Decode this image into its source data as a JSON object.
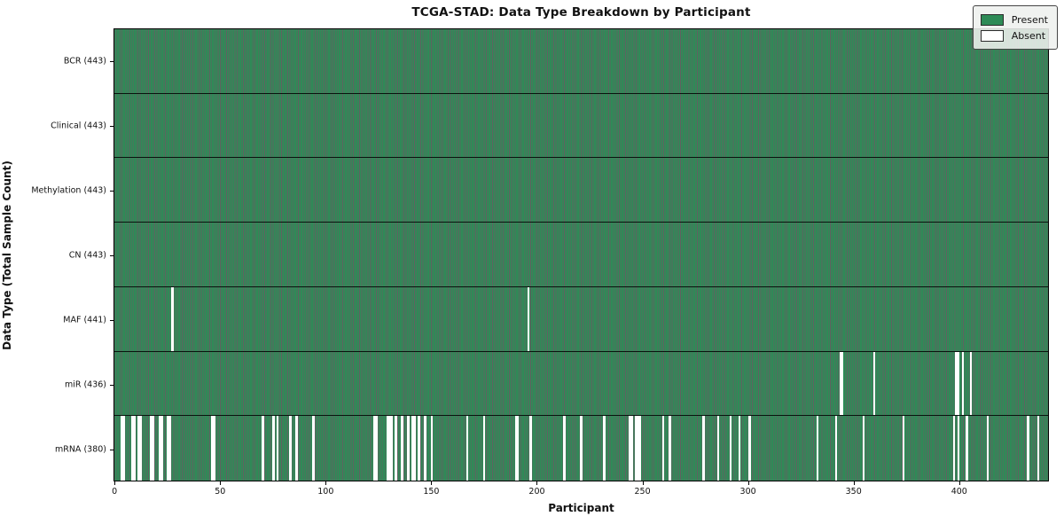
{
  "chart_data": {
    "type": "heatmap",
    "title": "TCGA-STAD: Data Type Breakdown by Participant",
    "xlabel": "Participant",
    "ylabel": "Data Type (Total Sample Count)",
    "n_participants": 443,
    "x_ticks": [
      0,
      50,
      100,
      150,
      200,
      250,
      300,
      350,
      400
    ],
    "legend_position": "upper right",
    "grid": false,
    "colors": {
      "present": "#2E8B57",
      "absent": "#FFFFFF",
      "edge": "#0D2B1B"
    },
    "legend": [
      {
        "label": "Present",
        "color": "#2E8B57"
      },
      {
        "label": "Absent",
        "color": "#FFFFFF"
      }
    ],
    "rows": [
      {
        "name": "BCR",
        "label": "BCR (443)",
        "total": 443,
        "absent": []
      },
      {
        "name": "Clinical",
        "label": "Clinical (443)",
        "total": 443,
        "absent": []
      },
      {
        "name": "Methylation",
        "label": "Methylation (443)",
        "total": 443,
        "absent": []
      },
      {
        "name": "CN",
        "label": "CN (443)",
        "total": 443,
        "absent": []
      },
      {
        "name": "MAF",
        "label": "MAF (441)",
        "total": 441,
        "absent": [
          27,
          196
        ]
      },
      {
        "name": "miR",
        "label": "miR (436)",
        "total": 436,
        "absent": [
          344,
          345,
          360,
          399,
          400,
          402,
          406
        ]
      },
      {
        "name": "mRNA",
        "label": "mRNA (380)",
        "total": 380,
        "absent": [
          3,
          4,
          8,
          9,
          11,
          12,
          17,
          18,
          21,
          22,
          25,
          26,
          46,
          47,
          70,
          75,
          77,
          83,
          86,
          94,
          123,
          124,
          129,
          130,
          131,
          133,
          136,
          139,
          141,
          142,
          144,
          147,
          150,
          167,
          175,
          190,
          191,
          197,
          213,
          221,
          232,
          244,
          245,
          247,
          248,
          249,
          260,
          263,
          279,
          286,
          292,
          296,
          301,
          333,
          342,
          355,
          374,
          398,
          400,
          404,
          414,
          433,
          438
        ]
      }
    ]
  }
}
